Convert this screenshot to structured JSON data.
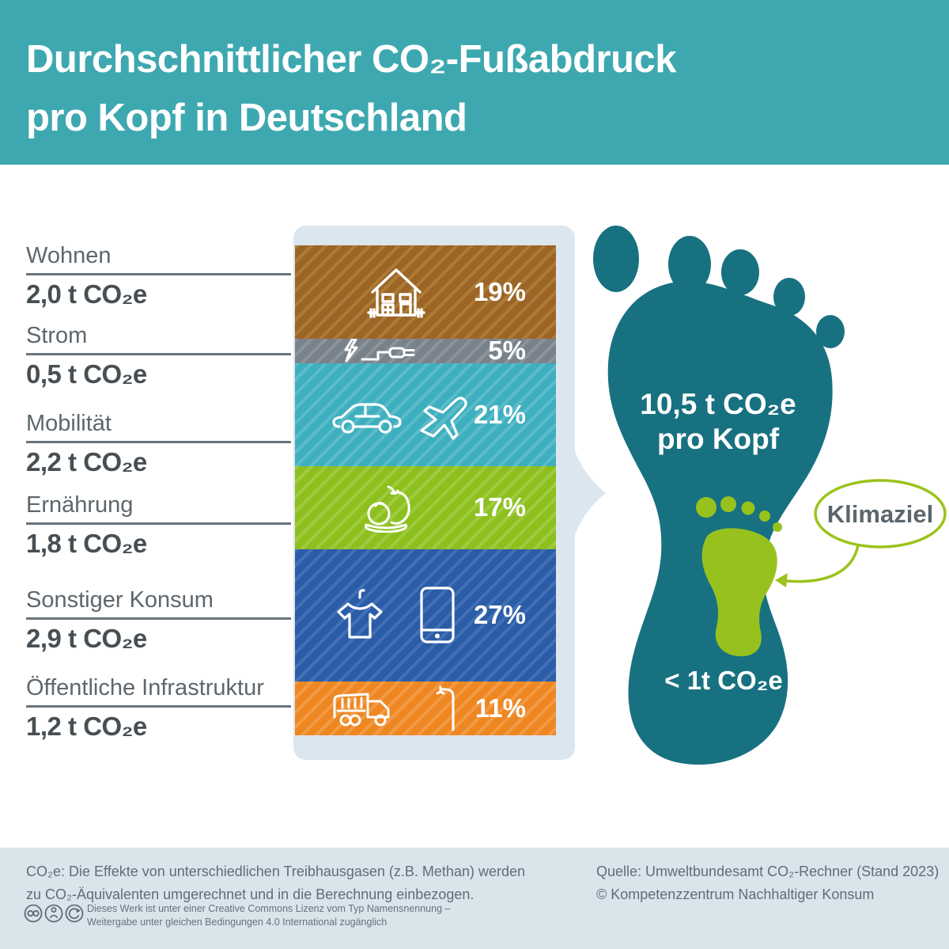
{
  "header": {
    "title_line1": "Durchschnittlicher CO₂-Fußabdruck",
    "title_line2": "pro Kopf in Deutschland",
    "bg_color": "#3EA8B0"
  },
  "categories": [
    {
      "label": "Wohnen",
      "value": "2,0 t CO₂e",
      "percent": "19%",
      "icons": [
        "house-icon"
      ]
    },
    {
      "label": "Strom",
      "value": "0,5 t CO₂e",
      "percent": "5%",
      "icons": [
        "electricity-plug-icon"
      ]
    },
    {
      "label": "Mobilität",
      "value": "2,2 t CO₂e",
      "percent": "21%",
      "icons": [
        "car-icon",
        "airplane-icon"
      ]
    },
    {
      "label": "Ernährung",
      "value": "1,8 t CO₂e",
      "percent": "17%",
      "icons": [
        "food-icon"
      ]
    },
    {
      "label": "Sonstiger Konsum",
      "value": "2,9 t CO₂e",
      "percent": "27%",
      "icons": [
        "tshirt-icon",
        "smartphone-icon"
      ]
    },
    {
      "label": "Öffentliche Infrastruktur",
      "value": "1,2 t CO₂e",
      "percent": "11%",
      "icons": [
        "garbage-truck-icon",
        "street-lamp-icon"
      ]
    }
  ],
  "chart_data": {
    "type": "bar",
    "orientation": "vertical-stacked",
    "title": "Durchschnittlicher CO₂-Fußabdruck pro Kopf in Deutschland",
    "categories": [
      "Wohnen",
      "Strom",
      "Mobilität",
      "Ernährung",
      "Sonstiger Konsum",
      "Öffentliche Infrastruktur"
    ],
    "values_t_co2e": [
      2.0,
      0.5,
      2.2,
      1.8,
      2.9,
      1.2
    ],
    "values_percent": [
      19,
      5,
      21,
      17,
      27,
      11
    ],
    "value_labels": [
      "2,0 t CO₂e",
      "0,5 t CO₂e",
      "2,2 t CO₂e",
      "1,8 t CO₂e",
      "2,9 t CO₂e",
      "1,2 t CO₂e"
    ],
    "percent_labels": [
      "19%",
      "5%",
      "21%",
      "17%",
      "27%",
      "11%"
    ],
    "total_t_co2e": 10.5,
    "total_label": "10,5 t CO₂e pro Kopf",
    "climate_target_label": "Klimaziel",
    "climate_target_value": "< 1t CO₂e",
    "colors": [
      "#9C6526",
      "#79828A",
      "#3EAFBF",
      "#8DC01E",
      "#2A5CA8",
      "#EE8722"
    ],
    "hatch_colors": [
      "#AC7B36",
      "#8B949A",
      "#5CBCC9",
      "#A0CB3F",
      "#4370B4",
      "#F39A45"
    ],
    "legend_position": "left",
    "grid": false
  },
  "foot": {
    "total_line1": "10,5 t CO₂e",
    "total_line2": "pro Kopf",
    "target_value": "< 1t CO₂e",
    "target_label": "Klimaziel",
    "foot_color": "#187181",
    "target_color": "#97C21E",
    "target_outline_color": "#9BC31C"
  },
  "footer": {
    "note_line1": "CO₂e: Die Effekte von unterschiedlichen Treibhausgasen (z.B. Methan) werden",
    "note_line2": "zu CO₂-Äquivalenten umgerechnet und in die Berechnung einbezogen.",
    "license_line1": "Dieses Werk ist unter einer Creative Commons Lizenz vom Typ Namensnennung –",
    "license_line2": "Weitergabe unter gleichen Bedingungen 4.0 International zugänglich",
    "source_line1": "Quelle: Umweltbundesamt CO₂-Rechner (Stand 2023)",
    "source_line2": "© Kompetenzzentrum Nachhaltiger Konsum"
  }
}
